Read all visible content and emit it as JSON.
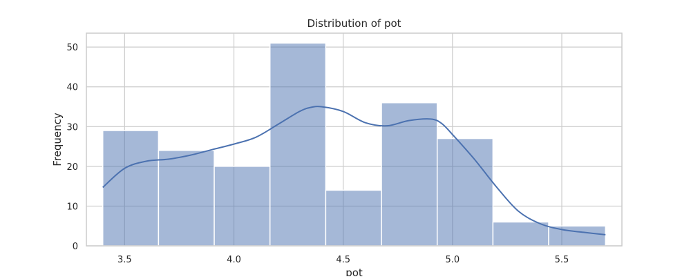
{
  "chart_data": {
    "type": "histogram",
    "title": "Distribution of pot",
    "xlabel": "pot",
    "ylabel": "Frequency",
    "xlim": [
      3.325,
      5.775
    ],
    "ylim": [
      0,
      53.5
    ],
    "grid": true,
    "color": "#4c72b0",
    "bins": [
      {
        "x0": 3.4,
        "x1": 3.655,
        "count": 29
      },
      {
        "x0": 3.655,
        "x1": 3.91,
        "count": 24
      },
      {
        "x0": 3.91,
        "x1": 4.165,
        "count": 20
      },
      {
        "x0": 4.165,
        "x1": 4.42,
        "count": 51
      },
      {
        "x0": 4.42,
        "x1": 4.675,
        "count": 14
      },
      {
        "x0": 4.675,
        "x1": 4.93,
        "count": 36
      },
      {
        "x0": 4.93,
        "x1": 5.185,
        "count": 27
      },
      {
        "x0": 5.185,
        "x1": 5.44,
        "count": 6
      },
      {
        "x0": 5.44,
        "x1": 5.7,
        "count": 5
      }
    ],
    "kde": {
      "x": [
        3.4,
        3.5,
        3.6,
        3.7,
        3.8,
        3.9,
        4.0,
        4.1,
        4.2,
        4.3,
        4.35,
        4.4,
        4.5,
        4.6,
        4.7,
        4.8,
        4.9,
        4.95,
        5.0,
        5.1,
        5.2,
        5.3,
        5.4,
        5.5,
        5.6,
        5.7
      ],
      "y": [
        14.7,
        19.5,
        21.3,
        21.8,
        22.8,
        24.2,
        25.6,
        27.3,
        30.5,
        33.8,
        34.8,
        35.0,
        33.8,
        31.0,
        30.2,
        31.5,
        31.9,
        30.8,
        28.0,
        21.8,
        14.9,
        8.8,
        5.6,
        4.1,
        3.4,
        2.8
      ]
    },
    "xticks": [
      3.5,
      4.0,
      4.5,
      5.0,
      5.5
    ],
    "xtick_labels": [
      "3.5",
      "4.0",
      "4.5",
      "5.0",
      "5.5"
    ],
    "yticks": [
      0,
      10,
      20,
      30,
      40,
      50
    ],
    "ytick_labels": [
      "0",
      "10",
      "20",
      "30",
      "40",
      "50"
    ]
  }
}
